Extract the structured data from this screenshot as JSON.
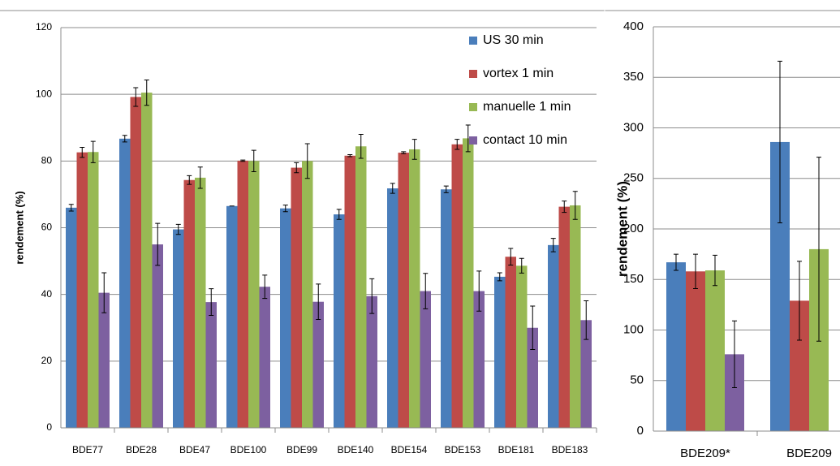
{
  "chart_data": [
    {
      "type": "bar",
      "y_label": "rendement (%)",
      "categories": [
        "BDE77",
        "BDE28",
        "BDE47",
        "BDE100",
        "BDE99",
        "BDE140",
        "BDE154",
        "BDE153",
        "BDE181",
        "BDE183"
      ],
      "series": [
        {
          "name": "US 30 min",
          "color": "#4a7ebb",
          "values": [
            66,
            86.7,
            59.5,
            66.5,
            65.8,
            64,
            71.8,
            71.5,
            45.3,
            54.8
          ],
          "errors": [
            1,
            1,
            1.5,
            0,
            1,
            1.5,
            1.5,
            1,
            1.2,
            2
          ]
        },
        {
          "name": "vortex 1 min",
          "color": "#be4b48",
          "values": [
            82.6,
            99.2,
            74.3,
            80.1,
            78,
            81.6,
            82.5,
            85,
            51.3,
            66.3
          ],
          "errors": [
            1.5,
            2.8,
            1.3,
            0.2,
            1.5,
            0.3,
            0.3,
            1.5,
            2.5,
            1.7
          ]
        },
        {
          "name": "manuelle 1 min",
          "color": "#98b954",
          "values": [
            82.7,
            100.5,
            75,
            80,
            80,
            84.4,
            83.5,
            86.8,
            48.6,
            66.7
          ],
          "errors": [
            3.2,
            3.8,
            3.2,
            3.2,
            5.2,
            3.6,
            3,
            4,
            2.2,
            4.2
          ]
        },
        {
          "name": "contact 10 min",
          "color": "#7d60a0",
          "values": [
            40.5,
            55,
            37.7,
            42.3,
            37.8,
            39.5,
            41,
            41,
            30,
            32.3
          ],
          "errors": [
            6,
            6.3,
            4,
            3.5,
            5.3,
            5.2,
            5.3,
            6,
            6.5,
            5.8
          ]
        }
      ],
      "ylim": [
        0,
        120
      ],
      "yticks": [
        0,
        20,
        40,
        60,
        80,
        100,
        120
      ],
      "grid": true,
      "legend": "top-right"
    },
    {
      "type": "bar",
      "y_label": "rendement (%)",
      "categories": [
        "BDE209*",
        "BDE209"
      ],
      "series": [
        {
          "color": "#4a7ebb",
          "values": [
            167,
            286
          ],
          "errors": [
            8,
            80
          ]
        },
        {
          "color": "#be4b48",
          "values": [
            158,
            129
          ],
          "errors": [
            17,
            39
          ]
        },
        {
          "color": "#98b954",
          "values": [
            159,
            180
          ],
          "errors": [
            15,
            91
          ]
        },
        {
          "color": "#7d60a0",
          "values": [
            76,
            null
          ],
          "errors": [
            33,
            null
          ]
        }
      ],
      "ylim": [
        0,
        400
      ],
      "yticks": [
        0,
        50,
        100,
        150,
        200,
        250,
        300,
        350,
        400
      ],
      "grid": true
    }
  ]
}
